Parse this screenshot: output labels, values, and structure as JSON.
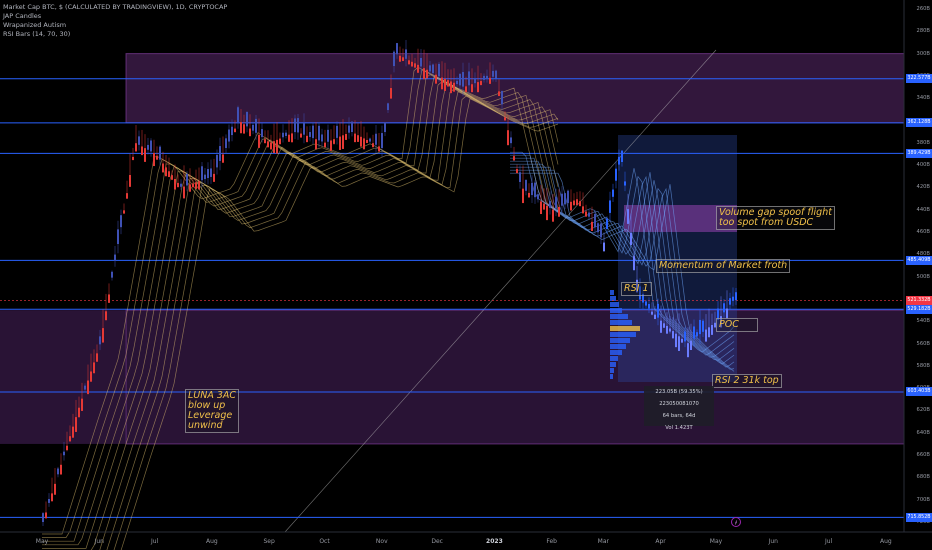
{
  "header": {
    "title": "Market Cap BTC, $ (CALCULATED BY TRADINGVIEW), 1D, CRYPTOCAP",
    "indicators": [
      "JAP Candles",
      "Wrapanized Autism",
      "RSI Bars (14, 70, 30)"
    ]
  },
  "annotations": {
    "luna": [
      "LUNA 3AC",
      "blow up",
      "Leverage",
      "unwind"
    ],
    "volume_gap": [
      "Volume gap spoof flight",
      "too spot from USDC"
    ],
    "momentum": "Momentum of Market froth",
    "rsi1": "RSI 1",
    "poc": "POC",
    "rsi2": "RSI 2 31k top"
  },
  "volume_profile_stats": [
    "223.05B (59.35%) 223050081070",
    "64 bars, 64d",
    "Vol 1.423T"
  ],
  "y_axis_ticks": [
    "260B",
    "280B",
    "300B",
    "320B",
    "340B",
    "360B",
    "380B",
    "400B",
    "420B",
    "440B",
    "460B",
    "480B",
    "500B",
    "520B",
    "540B",
    "560B",
    "580B",
    "600B",
    "620B",
    "640B",
    "660B",
    "680B",
    "700B",
    "720B"
  ],
  "price_tags": [
    {
      "label": "322.577B",
      "color": "#2962ff"
    },
    {
      "label": "362.128B",
      "color": "#2962ff"
    },
    {
      "label": "389.429B",
      "color": "#2962ff"
    },
    {
      "label": "485.409B",
      "color": "#2962ff"
    },
    {
      "label": "521.332B",
      "color": "#f23645"
    },
    {
      "label": "529.182B",
      "color": "#2962ff"
    },
    {
      "label": "603.403B",
      "color": "#2962ff"
    },
    {
      "label": "715.852B",
      "color": "#2962ff"
    }
  ],
  "x_axis_ticks": [
    {
      "label": "May",
      "bold": false
    },
    {
      "label": "Jun",
      "bold": false
    },
    {
      "label": "Jul",
      "bold": false
    },
    {
      "label": "Aug",
      "bold": false
    },
    {
      "label": "Sep",
      "bold": false
    },
    {
      "label": "Oct",
      "bold": false
    },
    {
      "label": "Nov",
      "bold": false
    },
    {
      "label": "Dec",
      "bold": false
    },
    {
      "label": "2023",
      "bold": true
    },
    {
      "label": "Feb",
      "bold": false
    },
    {
      "label": "Mar",
      "bold": false
    },
    {
      "label": "Apr",
      "bold": false
    },
    {
      "label": "May",
      "bold": false
    },
    {
      "label": "Jun",
      "bold": false
    },
    {
      "label": "Jul",
      "bold": false
    },
    {
      "label": "Aug",
      "bold": false
    }
  ],
  "chart_data": {
    "type": "candlestick",
    "title": "Market Cap BTC, $ (CALCULATED BY TRADINGVIEW), 1D, CRYPTOCAP",
    "y_axis_inverted": true,
    "ylim": [
      260,
      720
    ],
    "horizontal_levels": [
      322.577,
      362.128,
      389.429,
      485.409,
      521.332,
      529.182,
      603.403,
      715.852
    ],
    "zones": [
      {
        "from": 300,
        "to": 362,
        "color": "#5b2a6e"
      },
      {
        "from": 530,
        "to": 650,
        "color": "#4a2360"
      }
    ],
    "close_series": [
      {
        "x": "2022-05",
        "y": 720
      },
      {
        "x": "2022-05-20",
        "y": 620
      },
      {
        "x": "2022-06-01",
        "y": 560
      },
      {
        "x": "2022-06-15",
        "y": 430
      },
      {
        "x": "2022-06-20",
        "y": 380
      },
      {
        "x": "2022-07-01",
        "y": 390
      },
      {
        "x": "2022-07-15",
        "y": 420
      },
      {
        "x": "2022-08-01",
        "y": 410
      },
      {
        "x": "2022-08-15",
        "y": 360
      },
      {
        "x": "2022-09-01",
        "y": 380
      },
      {
        "x": "2022-09-15",
        "y": 370
      },
      {
        "x": "2022-10-01",
        "y": 380
      },
      {
        "x": "2022-10-15",
        "y": 370
      },
      {
        "x": "2022-11-01",
        "y": 385
      },
      {
        "x": "2022-11-08",
        "y": 300
      },
      {
        "x": "2022-11-20",
        "y": 310
      },
      {
        "x": "2022-12-01",
        "y": 320
      },
      {
        "x": "2022-12-15",
        "y": 330
      },
      {
        "x": "2023-01-01",
        "y": 320
      },
      {
        "x": "2023-01-15",
        "y": 420
      },
      {
        "x": "2023-02-01",
        "y": 440
      },
      {
        "x": "2023-02-15",
        "y": 430
      },
      {
        "x": "2023-03-01",
        "y": 470
      },
      {
        "x": "2023-03-10",
        "y": 390
      },
      {
        "x": "2023-03-20",
        "y": 520
      },
      {
        "x": "2023-04-01",
        "y": 540
      },
      {
        "x": "2023-04-15",
        "y": 560
      },
      {
        "x": "2023-05-01",
        "y": 540
      },
      {
        "x": "2023-05-10",
        "y": 521
      }
    ]
  }
}
